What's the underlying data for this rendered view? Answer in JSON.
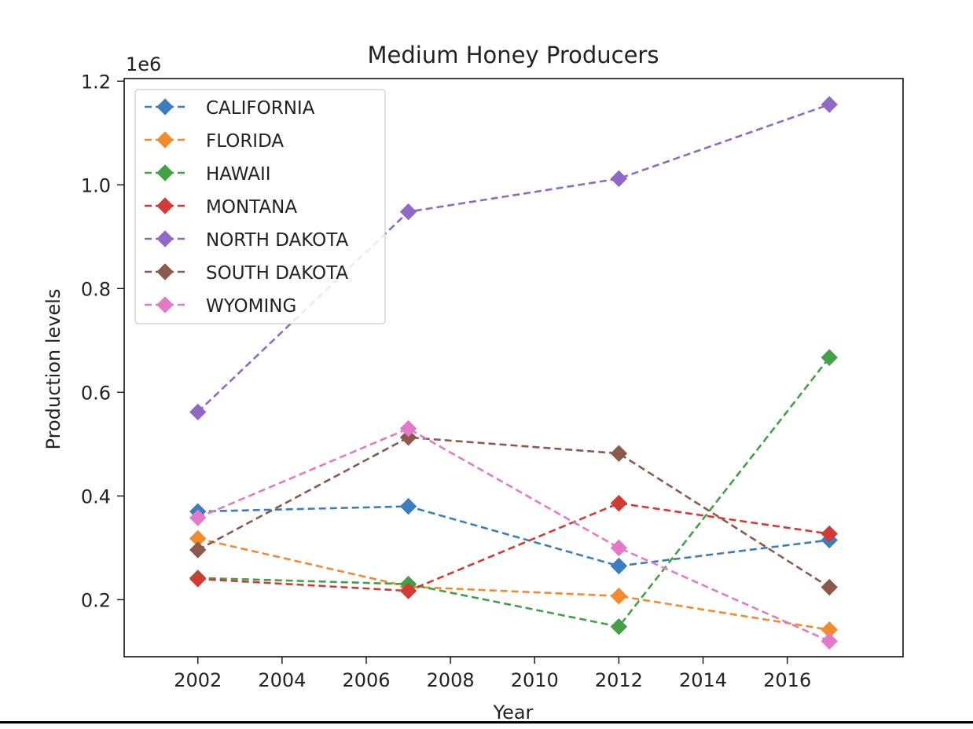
{
  "chart_data": {
    "type": "line",
    "title": "Medium Honey Producers",
    "xlabel": "Year",
    "ylabel": "Production levels",
    "y_offset_label": "1e6",
    "xlim": [
      2000.25,
      2018.75
    ],
    "ylim": [
      0.09,
      1.205
    ],
    "x_ticks": [
      2002,
      2004,
      2006,
      2008,
      2010,
      2012,
      2014,
      2016
    ],
    "y_ticks": [
      0.2,
      0.4,
      0.6,
      0.8,
      1.0,
      1.2
    ],
    "y_tick_labels": [
      "0.2",
      "0.4",
      "0.6",
      "0.8",
      "1.0",
      "1.2"
    ],
    "grid": false,
    "legend_position": "top-left",
    "marker": "diamond",
    "line_style": "dashed",
    "x": [
      2002,
      2007,
      2012,
      2017
    ],
    "series": [
      {
        "name": "CALIFORNIA",
        "color": "#3b7ebd",
        "values": [
          0.37,
          0.38,
          0.265,
          0.315
        ]
      },
      {
        "name": "FLORIDA",
        "color": "#f28a2e",
        "values": [
          0.318,
          0.225,
          0.207,
          0.142
        ]
      },
      {
        "name": "HAWAII",
        "color": "#43a046",
        "values": [
          0.242,
          0.23,
          0.148,
          0.667
        ]
      },
      {
        "name": "MONTANA",
        "color": "#d23a35",
        "values": [
          0.24,
          0.217,
          0.386,
          0.327
        ]
      },
      {
        "name": "NORTH DAKOTA",
        "color": "#9068c6",
        "values": [
          0.562,
          0.948,
          1.012,
          1.155
        ]
      },
      {
        "name": "SOUTH DAKOTA",
        "color": "#8c5a4d",
        "values": [
          0.296,
          0.513,
          0.482,
          0.224
        ]
      },
      {
        "name": "WYOMING",
        "color": "#e27ac8",
        "values": [
          0.358,
          0.53,
          0.3,
          0.12
        ]
      }
    ]
  }
}
